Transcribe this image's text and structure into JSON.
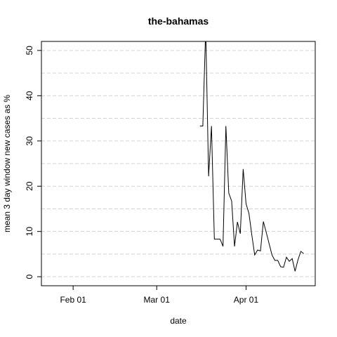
{
  "chart_data": {
    "type": "line",
    "title": "the-bahamas",
    "xlabel": "date",
    "ylabel": "mean  3  day window new cases as %",
    "x_axis": {
      "type": "date",
      "range": [
        "2020-01-21",
        "2020-04-25"
      ],
      "ticks": [
        {
          "date": "2020-02-01",
          "label": "Feb 01"
        },
        {
          "date": "2020-03-01",
          "label": "Mar 01"
        },
        {
          "date": "2020-04-01",
          "label": "Apr 01"
        }
      ]
    },
    "y_axis": {
      "range": [
        -2,
        52
      ],
      "ticks": [
        0,
        10,
        20,
        30,
        40,
        50
      ],
      "minor_gridlines": [
        5,
        15,
        25,
        35,
        45
      ]
    },
    "grid": "horizontal dashed",
    "series": [
      {
        "points": [
          {
            "x": "2020-03-16",
            "y": 33.3
          },
          {
            "x": "2020-03-17",
            "y": 33.3
          },
          {
            "x": "2020-03-18",
            "y": 55
          },
          {
            "x": "2020-03-19",
            "y": 22.2
          },
          {
            "x": "2020-03-20",
            "y": 33.3
          },
          {
            "x": "2020-03-21",
            "y": 8.3
          },
          {
            "x": "2020-03-22",
            "y": 8.3
          },
          {
            "x": "2020-03-23",
            "y": 8.3
          },
          {
            "x": "2020-03-24",
            "y": 6.7
          },
          {
            "x": "2020-03-25",
            "y": 33.3
          },
          {
            "x": "2020-03-26",
            "y": 18.5
          },
          {
            "x": "2020-03-27",
            "y": 16.7
          },
          {
            "x": "2020-03-28",
            "y": 6.7
          },
          {
            "x": "2020-03-29",
            "y": 12.1
          },
          {
            "x": "2020-03-30",
            "y": 9.5
          },
          {
            "x": "2020-03-31",
            "y": 23.8
          },
          {
            "x": "2020-04-01",
            "y": 16.1
          },
          {
            "x": "2020-04-02",
            "y": 14.0
          },
          {
            "x": "2020-04-03",
            "y": 9.2
          },
          {
            "x": "2020-04-04",
            "y": 4.8
          },
          {
            "x": "2020-04-05",
            "y": 5.9
          },
          {
            "x": "2020-04-06",
            "y": 5.7
          },
          {
            "x": "2020-04-07",
            "y": 12.2
          },
          {
            "x": "2020-04-08",
            "y": 9.8
          },
          {
            "x": "2020-04-09",
            "y": 7.3
          },
          {
            "x": "2020-04-10",
            "y": 4.8
          },
          {
            "x": "2020-04-11",
            "y": 3.6
          },
          {
            "x": "2020-04-12",
            "y": 3.6
          },
          {
            "x": "2020-04-13",
            "y": 2.2
          },
          {
            "x": "2020-04-14",
            "y": 2.1
          },
          {
            "x": "2020-04-15",
            "y": 4.3
          },
          {
            "x": "2020-04-16",
            "y": 3.4
          },
          {
            "x": "2020-04-17",
            "y": 4.0
          },
          {
            "x": "2020-04-18",
            "y": 1.2
          },
          {
            "x": "2020-04-19",
            "y": 3.7
          },
          {
            "x": "2020-04-20",
            "y": 5.6
          },
          {
            "x": "2020-04-21",
            "y": 5.1
          }
        ]
      }
    ],
    "colors": {
      "line": "#000000",
      "grid": "#d3d3d3"
    }
  }
}
